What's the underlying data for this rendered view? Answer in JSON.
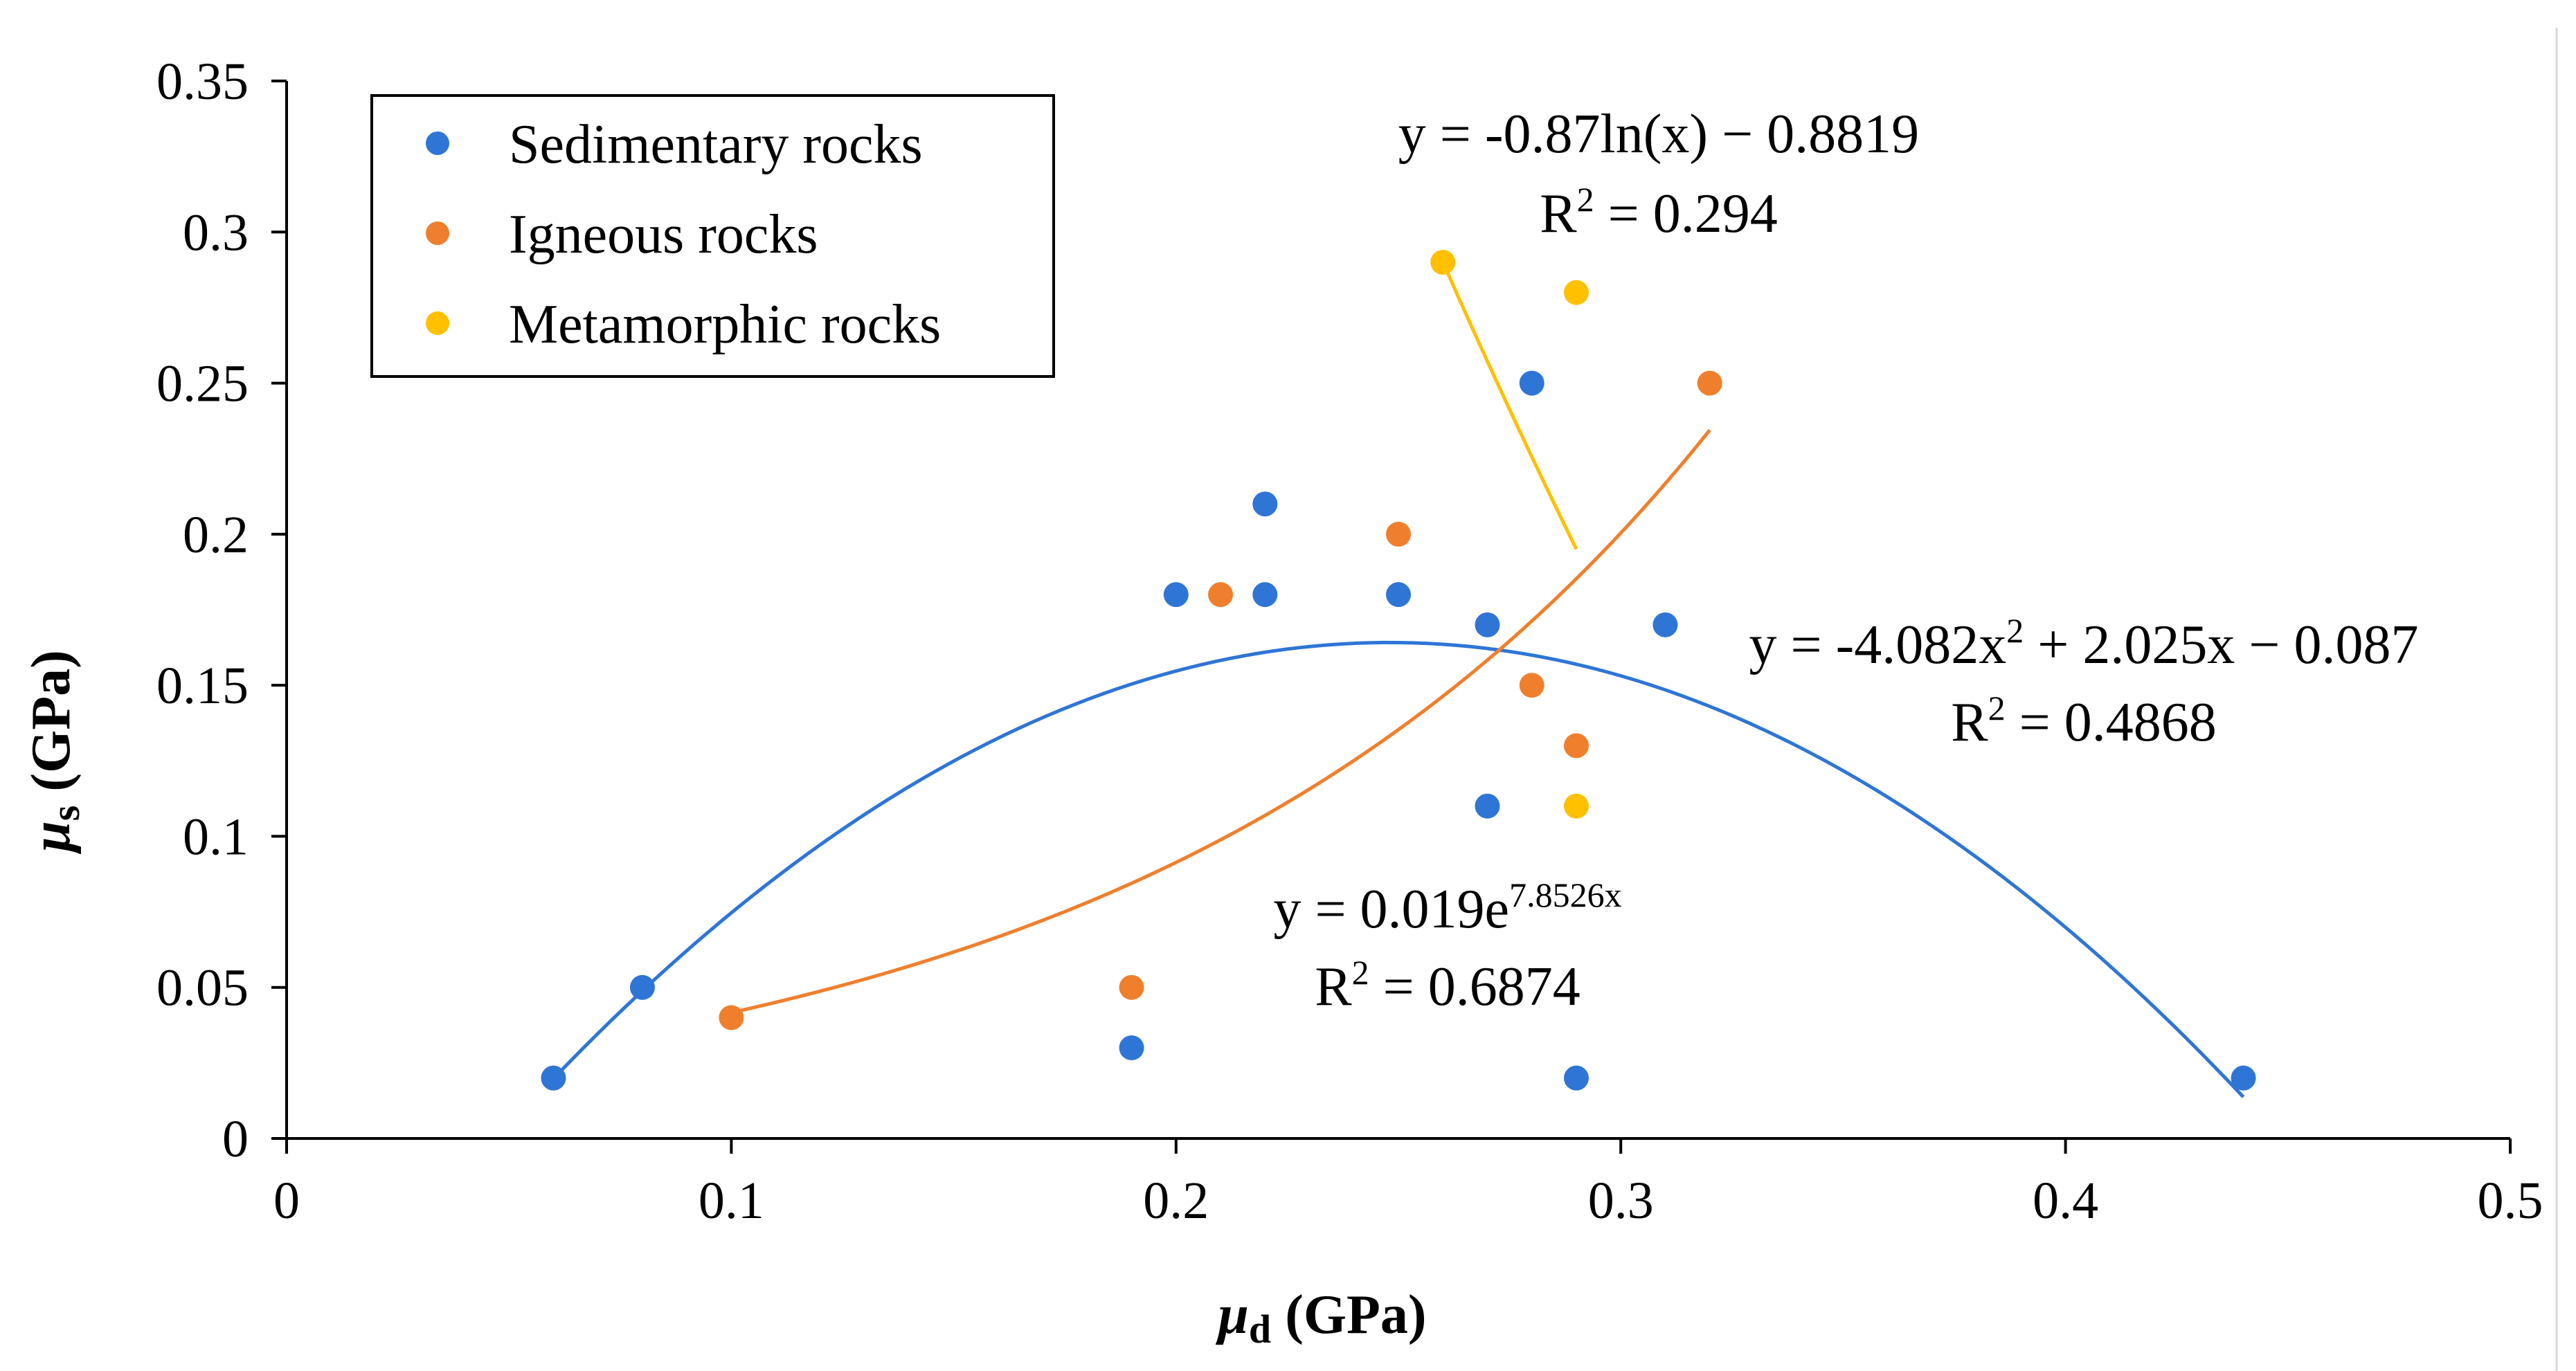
{
  "chart_data": {
    "type": "scatter",
    "xlabel": "μd (GPa)",
    "xlabel_parts": {
      "symbol": "μ",
      "sub": "d",
      "unit": " (GPa)"
    },
    "ylabel": "μs (GPa)",
    "ylabel_parts": {
      "symbol": "μ",
      "sub": "s",
      "unit": " (GPa)"
    },
    "xlim": [
      0,
      0.5
    ],
    "ylim": [
      0,
      0.35
    ],
    "xticks": [
      0,
      0.1,
      0.2,
      0.3,
      0.4,
      0.5
    ],
    "xtick_labels": [
      "0",
      "0.1",
      "0.2",
      "0.3",
      "0.4",
      "0.5"
    ],
    "yticks": [
      0,
      0.05,
      0.1,
      0.15,
      0.2,
      0.25,
      0.3,
      0.35
    ],
    "ytick_labels": [
      "0",
      "0.05",
      "0.1",
      "0.15",
      "0.2",
      "0.25",
      "0.3",
      "0.35"
    ],
    "grid": false,
    "legend_position": "top-left",
    "series": [
      {
        "name": "Sedimentary rocks",
        "color": "#2E75D6",
        "x": [
          0.06,
          0.08,
          0.19,
          0.2,
          0.22,
          0.22,
          0.25,
          0.27,
          0.27,
          0.28,
          0.29,
          0.31,
          0.44
        ],
        "y": [
          0.02,
          0.05,
          0.03,
          0.18,
          0.21,
          0.18,
          0.18,
          0.17,
          0.11,
          0.25,
          0.02,
          0.17,
          0.02
        ],
        "trendline": {
          "type": "polynomial",
          "coefficients": [
            -4.082,
            2.025,
            -0.087
          ],
          "x_range": [
            0.06,
            0.44
          ],
          "equation": {
            "prefix": "y = -4.082x",
            "sup": "2",
            "suffix": " + 2.025x − 0.087"
          },
          "r2": {
            "prefix": "R",
            "sup": "2",
            "suffix": " = 0.4868"
          }
        }
      },
      {
        "name": "Igneous rocks",
        "color": "#F07F2D",
        "x": [
          0.1,
          0.19,
          0.21,
          0.25,
          0.28,
          0.29,
          0.32
        ],
        "y": [
          0.04,
          0.05,
          0.18,
          0.2,
          0.15,
          0.13,
          0.25
        ],
        "trendline": {
          "type": "exponential",
          "a": 0.019,
          "b": 7.8526,
          "x_range": [
            0.1,
            0.32
          ],
          "equation": {
            "prefix": "y = 0.019e",
            "sup": "7.8526x",
            "suffix": ""
          },
          "r2": {
            "prefix": "R",
            "sup": "2",
            "suffix": " = 0.6874"
          }
        }
      },
      {
        "name": "Metamorphic rocks",
        "color": "#FFC000",
        "x": [
          0.26,
          0.29,
          0.29
        ],
        "y": [
          0.29,
          0.28,
          0.11
        ],
        "trendline": {
          "type": "logarithmic",
          "a": -0.87,
          "b": -0.8819,
          "x_range": [
            0.26,
            0.29
          ],
          "equation": {
            "prefix": "y = -0.87ln(x) − 0.8819",
            "sup": "",
            "suffix": ""
          },
          "r2": {
            "prefix": "R",
            "sup": "2",
            "suffix": " = 0.294"
          }
        }
      }
    ]
  }
}
